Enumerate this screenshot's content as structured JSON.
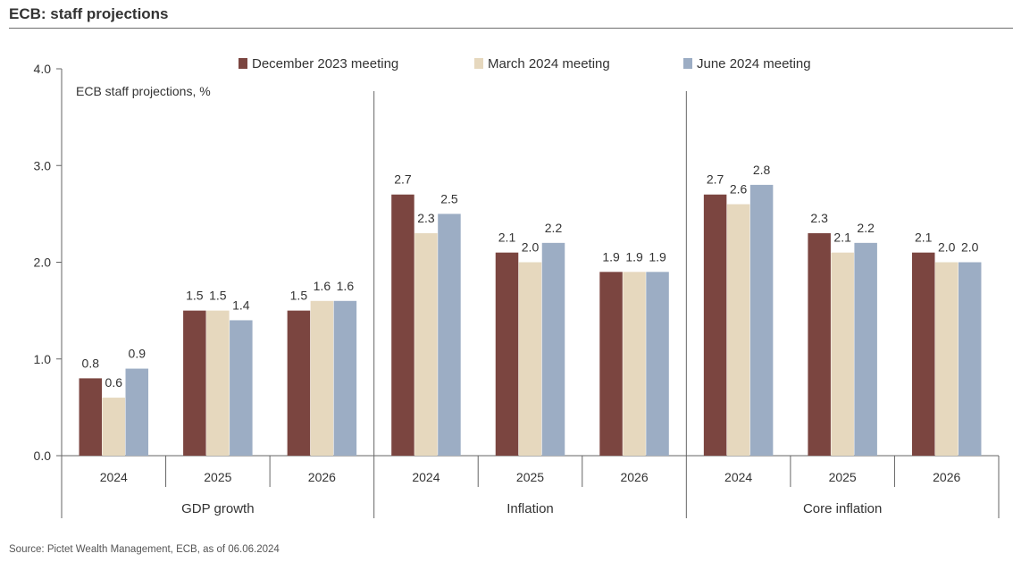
{
  "title": "ECB: staff projections",
  "source": "Source: Pictet Wealth Management, ECB, as of 06.06.2024",
  "colors": {
    "December 2023 meeting": "#7b4540",
    "March 2024 meeting": "#e6d8be",
    "June 2024 meeting": "#9cadc4",
    "axis": "#666666"
  },
  "chart_data": {
    "type": "bar",
    "title": "ECB: staff projections",
    "annotation": "ECB staff projections,  %",
    "ylim": [
      0,
      4
    ],
    "yticks": [
      "0.0",
      "1.0",
      "2.0",
      "3.0",
      "4.0"
    ],
    "legend_position": "top",
    "grid": false,
    "groups": [
      "GDP growth",
      "Inflation",
      "Core inflation"
    ],
    "categories": [
      "2024",
      "2025",
      "2026",
      "2024",
      "2025",
      "2026",
      "2024",
      "2025",
      "2026"
    ],
    "series": [
      {
        "name": "December 2023 meeting",
        "values": [
          0.8,
          1.5,
          1.5,
          2.7,
          2.1,
          1.9,
          2.7,
          2.3,
          2.1
        ]
      },
      {
        "name": "March 2024 meeting",
        "values": [
          0.6,
          1.5,
          1.6,
          2.3,
          2.0,
          1.9,
          2.6,
          2.1,
          2.0
        ]
      },
      {
        "name": "June 2024 meeting",
        "values": [
          0.9,
          1.4,
          1.6,
          2.5,
          2.2,
          1.9,
          2.8,
          2.2,
          2.0
        ]
      }
    ]
  }
}
